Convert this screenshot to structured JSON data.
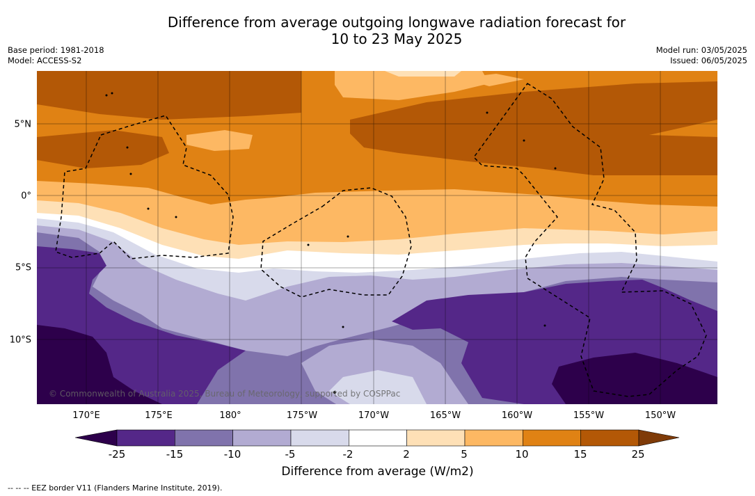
{
  "title": {
    "line1": "Difference from average outgoing longwave radiation forecast for",
    "line2": "10 to 23 May 2025"
  },
  "meta_left": {
    "base_period": "Base period: 1981-2018",
    "model": "Model: ACCESS-S2"
  },
  "meta_right": {
    "model_run": "Model run: 03/05/2025",
    "issued": "Issued: 06/05/2025"
  },
  "map": {
    "lat_labels": [
      "5°N",
      "0°",
      "5°S",
      "10°S"
    ],
    "lon_labels": [
      "170°E",
      "175°E",
      "180°",
      "175°W",
      "170°W",
      "165°W",
      "160°W",
      "155°W",
      "150°W"
    ],
    "credit": "© Commonwealth of Australia 2025, Bureau of Meteorology, supported by COSPPac",
    "eez_style": "black dashed"
  },
  "colorbar": {
    "ticks": [
      "-25",
      "-15",
      "-10",
      "-5",
      "-2",
      "2",
      "5",
      "10",
      "15",
      "25"
    ],
    "colors": {
      "under": "#2d004b",
      "bands": [
        "#542788",
        "#8073ac",
        "#b2abd2",
        "#d8daeb",
        "#ffffff",
        "#fee0b6",
        "#fdb863",
        "#e08214",
        "#b35806"
      ],
      "over": "#7f3b08"
    },
    "label": "Difference from average (W/m2)"
  },
  "footnote": "--  --  -- EEZ border V11 (Flanders Marine Institute, 2019)."
}
